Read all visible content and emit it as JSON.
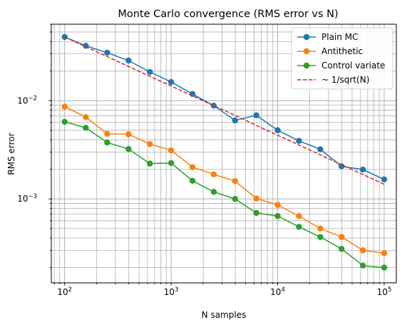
{
  "chart_data": {
    "type": "line",
    "title": "Monte Carlo convergence (RMS error vs N)",
    "xlabel": "N samples",
    "ylabel": "RMS error",
    "xscale": "log",
    "yscale": "log",
    "xlim": [
      75,
      130000
    ],
    "ylim": [
      0.00014,
      0.06
    ],
    "grid": "both major and minor",
    "legend_position": "top-right",
    "x": [
      100,
      158,
      251,
      398,
      631,
      1000,
      1585,
      2512,
      3981,
      6310,
      10000,
      15849,
      25119,
      39811,
      63096,
      100000
    ],
    "series": [
      {
        "name": "Plain MC",
        "color": "#1f77b4",
        "style": "solid",
        "marker": "circle",
        "values": [
          0.0445,
          0.0362,
          0.0308,
          0.0256,
          0.0196,
          0.0155,
          0.0117,
          0.0089,
          0.0063,
          0.0071,
          0.005,
          0.0039,
          0.0032,
          0.00215,
          0.00199,
          0.00158
        ]
      },
      {
        "name": "Antithetic",
        "color": "#ff7f0e",
        "style": "solid",
        "marker": "circle",
        "values": [
          0.0087,
          0.0068,
          0.0046,
          0.00455,
          0.00362,
          0.00312,
          0.00211,
          0.00178,
          0.00152,
          0.00101,
          0.00087,
          0.00067,
          0.0005,
          0.00041,
          0.0003,
          0.00028
        ]
      },
      {
        "name": "Control variate",
        "color": "#2ca02c",
        "style": "solid",
        "marker": "circle",
        "values": [
          0.0061,
          0.0053,
          0.00375,
          0.00322,
          0.00229,
          0.00232,
          0.00153,
          0.00118,
          0.001,
          0.00072,
          0.00067,
          0.00052,
          0.00041,
          0.00031,
          0.00021,
          0.0002
        ]
      },
      {
        "name": "~ 1/sqrt(N)",
        "color": "#d62728",
        "style": "dashed",
        "marker": "none",
        "values": [
          0.0445,
          0.0354,
          0.0281,
          0.0223,
          0.0177,
          0.0141,
          0.0112,
          0.0089,
          0.0071,
          0.0056,
          0.00445,
          0.00354,
          0.00281,
          0.00223,
          0.00177,
          0.00141
        ]
      }
    ]
  }
}
